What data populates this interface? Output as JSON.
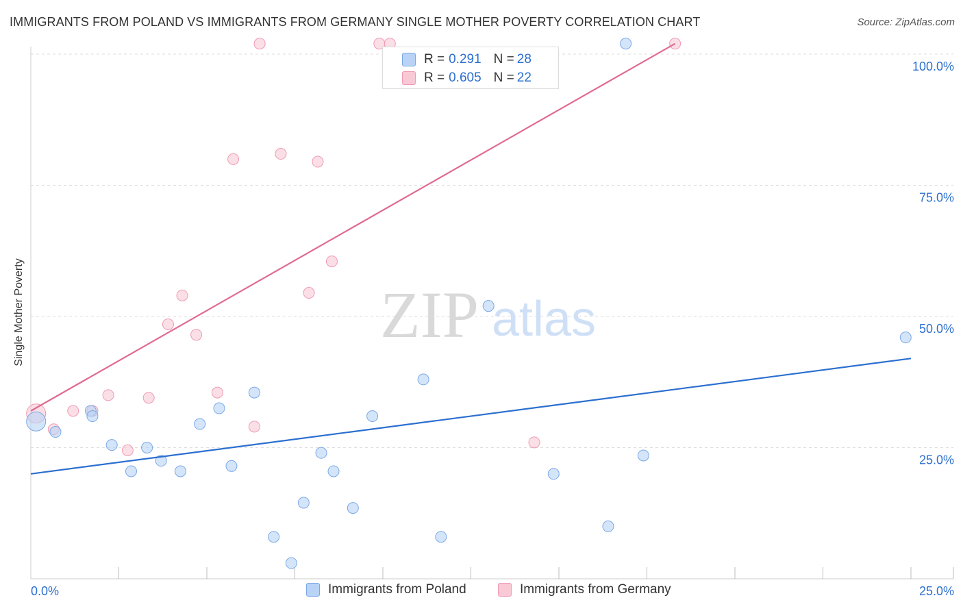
{
  "title": "IMMIGRANTS FROM POLAND VS IMMIGRANTS FROM GERMANY SINGLE MOTHER POVERTY CORRELATION CHART",
  "source": "Source: ZipAtlas.com",
  "watermark": {
    "zip": "ZIP",
    "atlas": "atlas"
  },
  "legend_top": {
    "rows": [
      {
        "r_label": "R = ",
        "r_value": "0.291",
        "n_label": "N = ",
        "n_value": "28"
      },
      {
        "r_label": "R = ",
        "r_value": "0.605",
        "n_label": "N = ",
        "n_value": "22"
      }
    ]
  },
  "colors": {
    "poland_fill": "#b8d3f5",
    "poland_stroke": "#7aa8e6",
    "poland_line": "#2b6fcf",
    "germany_fill": "#f9c9d6",
    "germany_stroke": "#f09ab3",
    "germany_line": "#e06a92",
    "grid": "#dddddd",
    "axis_text": "#2b6fcf"
  },
  "chart_data": {
    "type": "scatter",
    "title": "IMMIGRANTS FROM POLAND VS IMMIGRANTS FROM GERMANY SINGLE MOTHER POVERTY CORRELATION CHART",
    "xlabel": "",
    "ylabel": "Single Mother Poverty",
    "xlim": [
      0,
      25
    ],
    "ylim": [
      0,
      100
    ],
    "x_tick_labels": [
      {
        "value": 0,
        "label": "0.0%"
      },
      {
        "value": 25,
        "label": "25.0%"
      }
    ],
    "y_tick_labels": [
      {
        "value": 25,
        "label": "25.0%"
      },
      {
        "value": 50,
        "label": "50.0%"
      },
      {
        "value": 75,
        "label": "75.0%"
      },
      {
        "value": 100,
        "label": "100.0%"
      }
    ],
    "y_gridlines": [
      25,
      50,
      75,
      100
    ],
    "x_minor_ticks": [
      2.5,
      5,
      7.5,
      10,
      12.5,
      15,
      17.5,
      20,
      22.5,
      25
    ],
    "series": [
      {
        "name": "Immigrants from Poland",
        "r": 0.291,
        "n": 28,
        "trend": {
          "x": [
            0,
            25
          ],
          "y": [
            20.0,
            42.0
          ]
        },
        "points": [
          {
            "x": 0.15,
            "y": 30.0,
            "big": true
          },
          {
            "x": 0.7,
            "y": 28.0
          },
          {
            "x": 1.7,
            "y": 32.0
          },
          {
            "x": 1.75,
            "y": 31.0
          },
          {
            "x": 2.3,
            "y": 25.5
          },
          {
            "x": 2.85,
            "y": 20.5
          },
          {
            "x": 3.3,
            "y": 25.0
          },
          {
            "x": 3.7,
            "y": 22.5
          },
          {
            "x": 4.25,
            "y": 20.5
          },
          {
            "x": 4.8,
            "y": 29.5
          },
          {
            "x": 5.35,
            "y": 32.5
          },
          {
            "x": 5.7,
            "y": 21.5
          },
          {
            "x": 6.35,
            "y": 35.5
          },
          {
            "x": 6.9,
            "y": 8.0
          },
          {
            "x": 7.4,
            "y": 3.0
          },
          {
            "x": 7.75,
            "y": 14.5
          },
          {
            "x": 8.25,
            "y": 24.0
          },
          {
            "x": 8.6,
            "y": 20.5
          },
          {
            "x": 9.15,
            "y": 13.5
          },
          {
            "x": 9.7,
            "y": 31.0
          },
          {
            "x": 11.15,
            "y": 38.0
          },
          {
            "x": 11.65,
            "y": 8.0
          },
          {
            "x": 13.0,
            "y": 52.0
          },
          {
            "x": 14.85,
            "y": 20.0
          },
          {
            "x": 16.4,
            "y": 10.0
          },
          {
            "x": 16.9,
            "y": 102.0
          },
          {
            "x": 17.4,
            "y": 23.5
          },
          {
            "x": 24.85,
            "y": 46.0
          }
        ]
      },
      {
        "name": "Immigrants from Germany",
        "r": 0.605,
        "n": 22,
        "trend": {
          "x": [
            0,
            18.3
          ],
          "y": [
            32.0,
            102.0
          ]
        },
        "points": [
          {
            "x": 0.15,
            "y": 31.5,
            "big": true
          },
          {
            "x": 0.65,
            "y": 28.5
          },
          {
            "x": 1.2,
            "y": 32.0
          },
          {
            "x": 1.75,
            "y": 32.0
          },
          {
            "x": 2.2,
            "y": 35.0
          },
          {
            "x": 2.75,
            "y": 24.5
          },
          {
            "x": 3.35,
            "y": 34.5
          },
          {
            "x": 3.9,
            "y": 48.5
          },
          {
            "x": 4.3,
            "y": 54.0
          },
          {
            "x": 4.7,
            "y": 46.5
          },
          {
            "x": 5.3,
            "y": 35.5
          },
          {
            "x": 5.75,
            "y": 80.0
          },
          {
            "x": 6.35,
            "y": 29.0
          },
          {
            "x": 6.5,
            "y": 102.0
          },
          {
            "x": 7.1,
            "y": 81.0
          },
          {
            "x": 7.9,
            "y": 54.5
          },
          {
            "x": 8.15,
            "y": 79.5
          },
          {
            "x": 8.55,
            "y": 60.5
          },
          {
            "x": 9.9,
            "y": 102.0
          },
          {
            "x": 10.2,
            "y": 102.0
          },
          {
            "x": 14.3,
            "y": 26.0
          },
          {
            "x": 18.3,
            "y": 102.0
          }
        ]
      }
    ],
    "legend": [
      "Immigrants from Poland",
      "Immigrants from Germany"
    ],
    "legend_position": "bottom"
  }
}
